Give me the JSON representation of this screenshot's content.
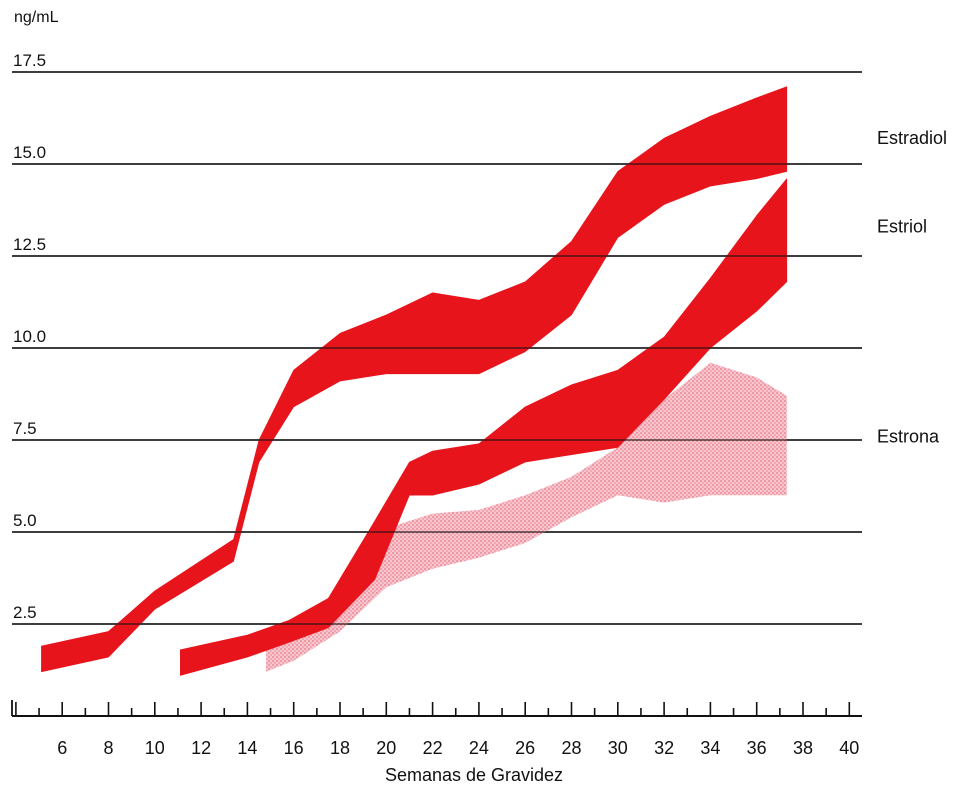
{
  "chart_data": {
    "type": "area",
    "ylabel": "ng/mL",
    "xlabel": "Semanas de Gravidez",
    "ylim": [
      0,
      17.5
    ],
    "xlim": [
      4,
      40
    ],
    "yticks": [
      "2.5",
      "5.0",
      "7.5",
      "10.0",
      "12.5",
      "15.0",
      "17.5"
    ],
    "ytick_values": [
      2.5,
      5.0,
      7.5,
      10.0,
      12.5,
      15.0,
      17.5
    ],
    "xticks": [
      "6",
      "8",
      "10",
      "12",
      "14",
      "16",
      "18",
      "20",
      "22",
      "24",
      "26",
      "28",
      "30",
      "32",
      "34",
      "36",
      "38",
      "40"
    ],
    "xtick_values": [
      6,
      8,
      10,
      12,
      14,
      16,
      18,
      20,
      22,
      24,
      26,
      28,
      30,
      32,
      34,
      36,
      38,
      40
    ],
    "grid": true,
    "series": [
      {
        "name": "Estradiol",
        "color": "#e8141c",
        "x": [
          5.1,
          8,
          10,
          13.4,
          14.5,
          16,
          18,
          20,
          22,
          24,
          26,
          28,
          30,
          32,
          34,
          36,
          37.3
        ],
        "upper": [
          1.9,
          2.3,
          3.4,
          4.8,
          7.5,
          9.4,
          10.4,
          10.9,
          11.5,
          11.3,
          11.8,
          12.9,
          14.8,
          15.7,
          16.3,
          16.8,
          17.1
        ],
        "lower": [
          1.2,
          1.6,
          2.9,
          4.2,
          6.9,
          8.4,
          9.1,
          9.3,
          9.3,
          9.3,
          9.9,
          10.9,
          13.0,
          13.9,
          14.4,
          14.6,
          14.8
        ],
        "label_value": 15.7
      },
      {
        "name": "Estriol",
        "color": "#e8141c",
        "x": [
          11.1,
          14,
          15.8,
          17.5,
          19.5,
          21,
          22,
          24,
          26,
          28,
          30,
          32,
          34,
          36,
          37.3
        ],
        "upper": [
          1.8,
          2.2,
          2.6,
          3.2,
          5.3,
          6.9,
          7.2,
          7.4,
          8.4,
          9.0,
          9.4,
          10.3,
          11.9,
          13.6,
          14.6
        ],
        "lower": [
          1.1,
          1.6,
          2.0,
          2.4,
          3.7,
          6.0,
          6.0,
          6.3,
          6.9,
          7.1,
          7.3,
          8.6,
          10.0,
          11.0,
          11.8
        ],
        "label_value": 13.3
      },
      {
        "name": "Estrona",
        "color": "#f3a5b1",
        "x": [
          14.8,
          16,
          18,
          20,
          22,
          24,
          26,
          28,
          30,
          32,
          34,
          36,
          37.3
        ],
        "upper": [
          1.9,
          2.2,
          3.2,
          5.1,
          5.5,
          5.6,
          6.0,
          6.5,
          7.3,
          8.6,
          9.6,
          9.2,
          8.7
        ],
        "lower": [
          1.2,
          1.5,
          2.3,
          3.5,
          4.0,
          4.3,
          4.7,
          5.4,
          6.0,
          5.8,
          6.0,
          6.0,
          6.0
        ],
        "label_value": 7.6
      }
    ]
  }
}
